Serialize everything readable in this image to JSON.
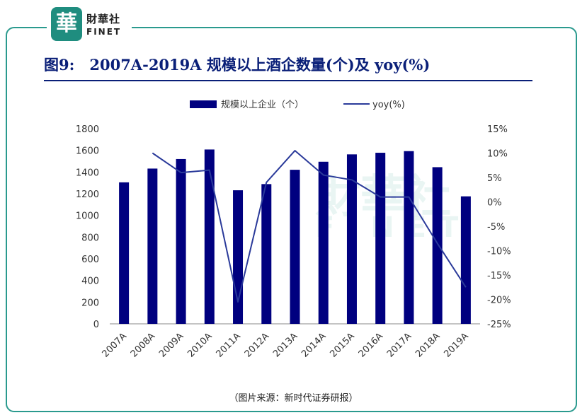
{
  "header": {
    "logo_cn": "財華社",
    "logo_en": "FINET",
    "logo_mark": "華"
  },
  "title": "图9:　2007A-2019A 规模以上酒企数量(个)及 yoy(%)",
  "source": "（图片来源：新时代证券研报）",
  "watermark": {
    "cn": "財華社",
    "en": "FINET"
  },
  "colors": {
    "bar": "#00007f",
    "line": "#2a3a9a",
    "frame": "#2a9a8e",
    "title": "#0a1f78"
  },
  "chart_data": {
    "type": "bar+line",
    "categories": [
      "2007A",
      "2008A",
      "2009A",
      "2010A",
      "2011A",
      "2012A",
      "2013A",
      "2014A",
      "2015A",
      "2016A",
      "2017A",
      "2018A",
      "2019A"
    ],
    "series": [
      {
        "name": "规模以上企业（个）",
        "type": "bar",
        "axis": "left",
        "values": [
          1305,
          1432,
          1520,
          1608,
          1232,
          1289,
          1421,
          1495,
          1563,
          1578,
          1593,
          1445,
          1176
        ]
      },
      {
        "name": "yoy(%)",
        "type": "line",
        "axis": "right",
        "values": [
          null,
          10.0,
          6.0,
          6.5,
          -20.5,
          4.0,
          10.5,
          5.5,
          4.5,
          1.0,
          1.0,
          -8.5,
          -17.5
        ]
      }
    ],
    "y_left": {
      "min": 0,
      "max": 1800,
      "ticks": [
        "0",
        "200",
        "400",
        "600",
        "800",
        "1000",
        "1200",
        "1400",
        "1600",
        "1800"
      ]
    },
    "y_right": {
      "min": -25,
      "max": 15,
      "ticks": [
        "-25%",
        "-20%",
        "-15%",
        "-10%",
        "-5%",
        "0%",
        "5%",
        "10%",
        "15%"
      ]
    },
    "legend": "top-center",
    "grid": false
  }
}
